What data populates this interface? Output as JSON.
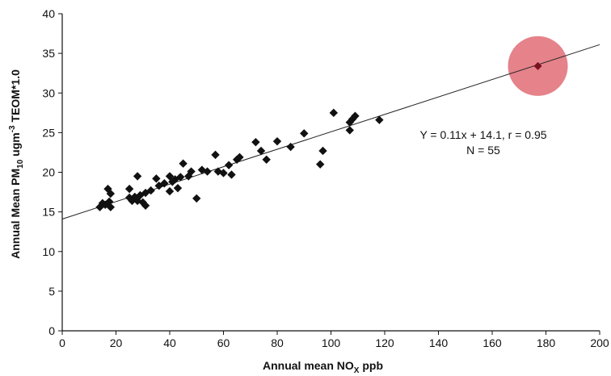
{
  "chart_data": {
    "type": "scatter",
    "xlabel": {
      "main": "Annual mean NO",
      "sub": "X",
      "tail": " ppb"
    },
    "ylabel": {
      "part1": "Annual Mean PM",
      "sub": "10",
      "part2": " ugm",
      "sup": "-3",
      "part3": " TEOM*1.0"
    },
    "xlim": [
      0,
      200
    ],
    "ylim": [
      0,
      40
    ],
    "xticks": [
      0,
      20,
      40,
      60,
      80,
      100,
      120,
      140,
      160,
      180,
      200
    ],
    "yticks": [
      0,
      5,
      10,
      15,
      20,
      25,
      30,
      35,
      40
    ],
    "grid": false,
    "legend": "none",
    "marker_color": "#111111",
    "highlight_color": "#e06c75",
    "highlight_marker_color": "#7a1020",
    "trendline": {
      "slope": 0.11,
      "intercept": 14.1,
      "x_range": [
        0,
        200
      ]
    },
    "annotations": [
      "Y = 0.11x + 14.1, r = 0.95",
      "N = 55"
    ],
    "highlight_point": {
      "x": 177,
      "y": 33.4
    },
    "points": [
      {
        "x": 14,
        "y": 15.6
      },
      {
        "x": 15,
        "y": 16.1
      },
      {
        "x": 16,
        "y": 15.9
      },
      {
        "x": 17,
        "y": 17.9
      },
      {
        "x": 17.5,
        "y": 16.3
      },
      {
        "x": 18,
        "y": 15.6
      },
      {
        "x": 18,
        "y": 17.3
      },
      {
        "x": 25,
        "y": 17.9
      },
      {
        "x": 25,
        "y": 16.8
      },
      {
        "x": 26,
        "y": 16.4
      },
      {
        "x": 27,
        "y": 16.9
      },
      {
        "x": 28,
        "y": 16.4
      },
      {
        "x": 28,
        "y": 19.5
      },
      {
        "x": 29,
        "y": 17.1
      },
      {
        "x": 30,
        "y": 16.2
      },
      {
        "x": 31,
        "y": 15.8
      },
      {
        "x": 31,
        "y": 17.4
      },
      {
        "x": 33,
        "y": 17.7
      },
      {
        "x": 35,
        "y": 19.2
      },
      {
        "x": 36,
        "y": 18.3
      },
      {
        "x": 38,
        "y": 18.6
      },
      {
        "x": 40,
        "y": 17.6
      },
      {
        "x": 40,
        "y": 19.5
      },
      {
        "x": 41,
        "y": 18.8
      },
      {
        "x": 42,
        "y": 19.1
      },
      {
        "x": 43,
        "y": 18.0
      },
      {
        "x": 44,
        "y": 19.4
      },
      {
        "x": 45,
        "y": 21.1
      },
      {
        "x": 47,
        "y": 19.5
      },
      {
        "x": 48,
        "y": 20.1
      },
      {
        "x": 50,
        "y": 16.7
      },
      {
        "x": 52,
        "y": 20.3
      },
      {
        "x": 54,
        "y": 20.1
      },
      {
        "x": 57,
        "y": 22.2
      },
      {
        "x": 58,
        "y": 20.1
      },
      {
        "x": 60,
        "y": 19.9
      },
      {
        "x": 62,
        "y": 20.9
      },
      {
        "x": 63,
        "y": 19.7
      },
      {
        "x": 65,
        "y": 21.6
      },
      {
        "x": 66,
        "y": 21.9
      },
      {
        "x": 72,
        "y": 23.8
      },
      {
        "x": 74,
        "y": 22.7
      },
      {
        "x": 76,
        "y": 21.6
      },
      {
        "x": 80,
        "y": 23.9
      },
      {
        "x": 85,
        "y": 23.2
      },
      {
        "x": 90,
        "y": 24.9
      },
      {
        "x": 96,
        "y": 21.0
      },
      {
        "x": 97,
        "y": 22.7
      },
      {
        "x": 101,
        "y": 27.5
      },
      {
        "x": 107,
        "y": 25.3
      },
      {
        "x": 107,
        "y": 26.3
      },
      {
        "x": 108,
        "y": 26.7
      },
      {
        "x": 109,
        "y": 27.1
      },
      {
        "x": 118,
        "y": 26.6
      }
    ]
  }
}
